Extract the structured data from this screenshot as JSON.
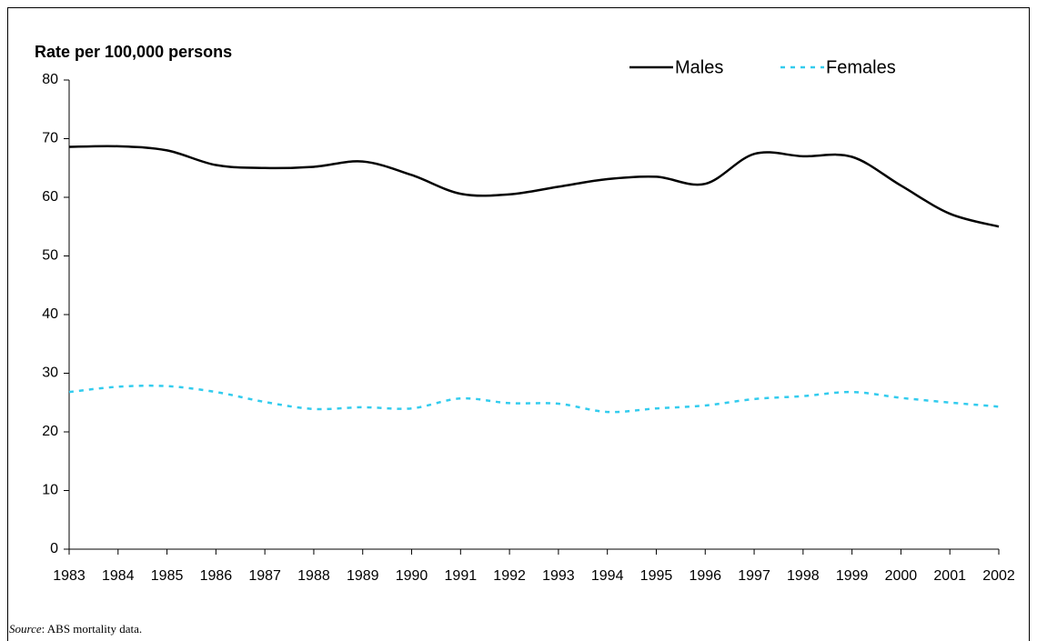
{
  "chart_data": {
    "type": "line",
    "y_axis_label": "Rate per 100,000 persons",
    "categories": [
      "1983",
      "1984",
      "1985",
      "1986",
      "1987",
      "1988",
      "1989",
      "1990",
      "1991",
      "1992",
      "1993",
      "1994",
      "1995",
      "1996",
      "1997",
      "1998",
      "1999",
      "2000",
      "2001",
      "2002"
    ],
    "series": [
      {
        "name": "Males",
        "color": "#000000",
        "dash": "solid",
        "values": [
          68.6,
          68.7,
          68.0,
          65.5,
          65.0,
          65.2,
          66.1,
          63.8,
          60.6,
          60.5,
          61.8,
          63.1,
          63.5,
          62.3,
          67.4,
          67.0,
          66.9,
          62.0,
          57.2,
          55.0
        ]
      },
      {
        "name": "Females",
        "color": "#33ccee",
        "dash": "dotted",
        "values": [
          26.8,
          27.7,
          27.8,
          26.8,
          25.1,
          23.9,
          24.2,
          24.0,
          25.7,
          24.9,
          24.8,
          23.4,
          24.0,
          24.5,
          25.6,
          26.1,
          26.8,
          25.8,
          25.0,
          24.3
        ]
      }
    ],
    "ylim": [
      0,
      80
    ],
    "yticks": [
      0,
      10,
      20,
      30,
      40,
      50,
      60,
      70,
      80
    ],
    "grid": false,
    "smooth": true,
    "source": {
      "label": "Source",
      "text": ": ABS mortality data."
    }
  }
}
